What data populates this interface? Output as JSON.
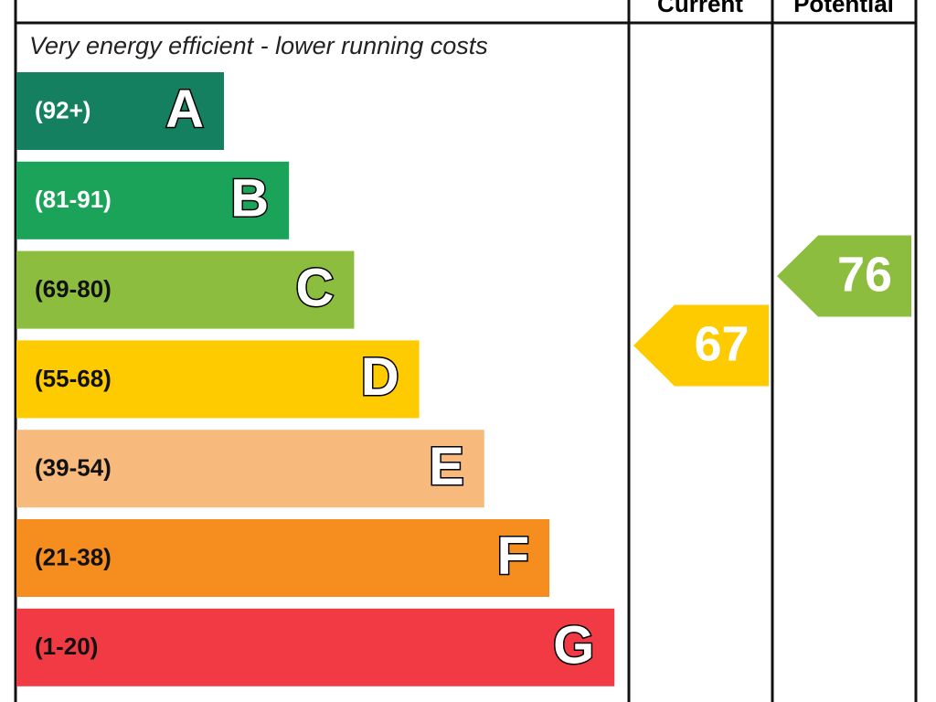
{
  "chart_data": {
    "type": "energy-rating",
    "columns": [
      "Current",
      "Potential"
    ],
    "subtitle": "Very energy efficient - lower running costs",
    "bands": [
      {
        "range": "(92+)",
        "letter": "A",
        "color": "#14805f",
        "text_color": "#ffffff"
      },
      {
        "range": "(81-91)",
        "letter": "B",
        "color": "#1ca35a",
        "text_color": "#ffffff"
      },
      {
        "range": "(69-80)",
        "letter": "C",
        "color": "#8cbd3f",
        "text_color": "#111111"
      },
      {
        "range": "(55-68)",
        "letter": "D",
        "color": "#fecb00",
        "text_color": "#111111"
      },
      {
        "range": "(39-54)",
        "letter": "E",
        "color": "#f8b97d",
        "text_color": "#111111"
      },
      {
        "range": "(21-38)",
        "letter": "F",
        "color": "#f68d1f",
        "text_color": "#111111"
      },
      {
        "range": "(1-20)",
        "letter": "G",
        "color": "#f23a45",
        "text_color": "#111111"
      }
    ],
    "current": {
      "value": 67,
      "color": "#fecb00"
    },
    "potential": {
      "value": 76,
      "color": "#8cbd3f"
    }
  }
}
